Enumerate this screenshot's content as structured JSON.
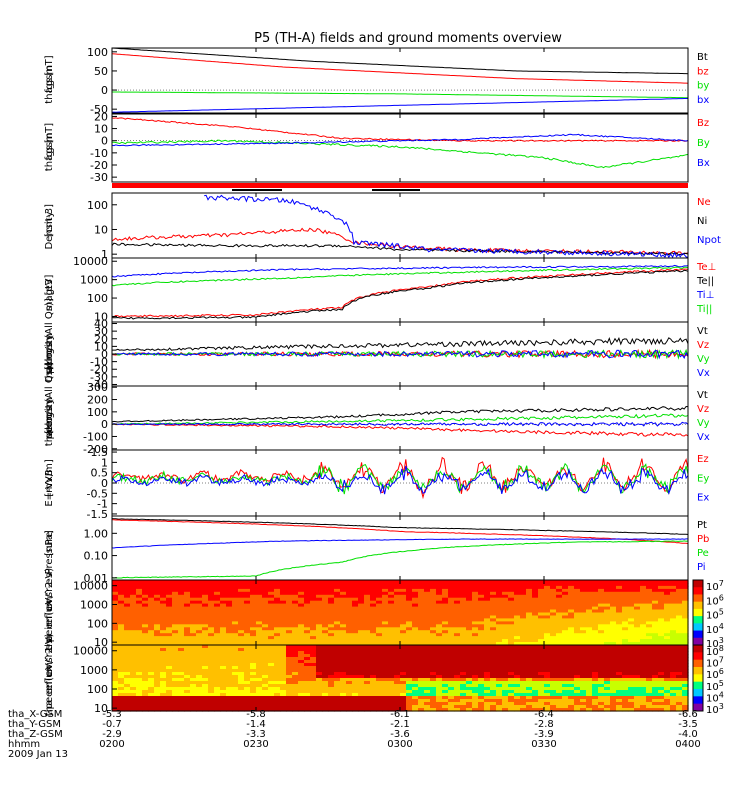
{
  "title": "P5 (TH-A) fields and ground moments overview",
  "colors": {
    "black": "#000000",
    "red": "#ff0000",
    "green": "#00e000",
    "blue": "#0000ff"
  },
  "chart_data": [
    {
      "type": "line",
      "ylabel": [
        "tha",
        "fgs",
        "gsm",
        "[nT]"
      ],
      "yticks": [
        100,
        50,
        0,
        -50
      ],
      "ylim": [
        -60,
        110
      ],
      "series": [
        {
          "name": "Bt",
          "color": "black",
          "trend": [
            [
              0,
              110
            ],
            [
              0.35,
              75
            ],
            [
              0.7,
              50
            ],
            [
              1,
              43
            ]
          ],
          "noise": 0.3
        },
        {
          "name": "bz",
          "color": "red",
          "trend": [
            [
              0,
              95
            ],
            [
              0.3,
              60
            ],
            [
              0.7,
              30
            ],
            [
              1,
              18
            ]
          ],
          "noise": 0.3
        },
        {
          "name": "by",
          "color": "green",
          "trend": [
            [
              0,
              -5
            ],
            [
              0.5,
              -10
            ],
            [
              1,
              -20
            ]
          ],
          "noise": 0.3
        },
        {
          "name": "bx",
          "color": "blue",
          "trend": [
            [
              0,
              -58
            ],
            [
              0.5,
              -40
            ],
            [
              1,
              -22
            ]
          ],
          "noise": 0.3
        }
      ]
    },
    {
      "type": "line",
      "ylabel": [
        "tha",
        "fgs",
        "gsm",
        "[nT]"
      ],
      "yticks": [
        20,
        10,
        0,
        -10,
        -20,
        -30
      ],
      "ylim": [
        -34,
        22
      ],
      "series": [
        {
          "name": "Bz",
          "color": "red",
          "trend": [
            [
              0,
              19
            ],
            [
              0.2,
              12
            ],
            [
              0.4,
              2
            ],
            [
              0.6,
              0
            ],
            [
              1,
              0
            ]
          ],
          "noise": 1
        },
        {
          "name": "By",
          "color": "green",
          "trend": [
            [
              0,
              -2
            ],
            [
              0.2,
              0
            ],
            [
              0.5,
              -5
            ],
            [
              0.75,
              -14
            ],
            [
              0.85,
              -22
            ],
            [
              1,
              -12
            ]
          ],
          "noise": 1.5
        },
        {
          "name": "Bx",
          "color": "blue",
          "trend": [
            [
              0,
              -4
            ],
            [
              0.3,
              -2
            ],
            [
              0.6,
              1
            ],
            [
              0.8,
              5
            ],
            [
              1,
              0
            ]
          ],
          "noise": 1
        }
      ]
    },
    {
      "type": "line",
      "log": true,
      "ylabel": [
        "Density",
        "[cm-3]"
      ],
      "yticks": [
        100,
        10,
        1
      ],
      "ylim": [
        0.7,
        300
      ],
      "series": [
        {
          "name": "Ne",
          "color": "red",
          "trend": [
            [
              0,
              4
            ],
            [
              0.2,
              6
            ],
            [
              0.35,
              10
            ],
            [
              0.42,
              3
            ],
            [
              0.5,
              2
            ],
            [
              0.6,
              1.5
            ],
            [
              1,
              1.1
            ]
          ],
          "noise": 0.15
        },
        {
          "name": "Ni",
          "color": "black",
          "trend": [
            [
              0,
              2.5
            ],
            [
              0.2,
              2.2
            ],
            [
              0.4,
              2.2
            ],
            [
              0.5,
              1.5
            ],
            [
              1,
              1
            ]
          ],
          "noise": 0.1
        },
        {
          "name": "Npot",
          "color": "blue",
          "trend": [
            [
              0.16,
              200
            ],
            [
              0.3,
              150
            ],
            [
              0.36,
              60
            ],
            [
              0.42,
              3
            ],
            [
              0.55,
              1.5
            ],
            [
              1,
              0.9
            ]
          ],
          "noise": 0.2
        }
      ]
    },
    {
      "type": "line",
      "log": true,
      "ylabel": [
        "magt3",
        "[eV]"
      ],
      "yticks": [
        10000,
        1000,
        100,
        10
      ],
      "ylim": [
        5,
        15000
      ],
      "series": [
        {
          "name": "Te⊥",
          "color": "red",
          "trend": [
            [
              0,
              10
            ],
            [
              0.25,
              12
            ],
            [
              0.4,
              30
            ],
            [
              0.55,
              400
            ],
            [
              0.8,
              1800
            ],
            [
              1,
              3500
            ]
          ],
          "noise": 0.1
        },
        {
          "name": "Te||",
          "color": "black",
          "trend": [
            [
              0,
              8
            ],
            [
              0.25,
              9
            ],
            [
              0.4,
              25
            ],
            [
              0.55,
              350
            ],
            [
              0.8,
              1500
            ],
            [
              1,
              3000
            ]
          ],
          "noise": 0.1
        },
        {
          "name": "Ti⊥",
          "color": "blue",
          "trend": [
            [
              0,
              1500
            ],
            [
              0.3,
              3500
            ],
            [
              0.6,
              4500
            ],
            [
              1,
              5500
            ]
          ],
          "noise": 0.08
        },
        {
          "name": "Ti||",
          "color": "green",
          "trend": [
            [
              0,
              500
            ],
            [
              0.3,
              1200
            ],
            [
              0.6,
              2500
            ],
            [
              1,
              4500
            ]
          ],
          "noise": 0.08
        }
      ]
    },
    {
      "type": "line",
      "ylabel": [
        "tha",
        "peir",
        "velocity",
        "gsm",
        "[km/s (All Qs)]"
      ],
      "yticks": [
        40,
        30,
        20,
        10,
        0,
        -10,
        -20,
        -30,
        -40
      ],
      "ylim": [
        -42,
        42
      ],
      "series": [
        {
          "name": "Vt",
          "color": "black",
          "trend": [
            [
              0,
              5
            ],
            [
              0.5,
              12
            ],
            [
              1,
              18
            ]
          ],
          "noise": 6
        },
        {
          "name": "Vz",
          "color": "red",
          "trend": [
            [
              0,
              0
            ],
            [
              1,
              0
            ]
          ],
          "noise": 7
        },
        {
          "name": "Vy",
          "color": "green",
          "trend": [
            [
              0,
              0
            ],
            [
              1,
              0
            ]
          ],
          "noise": 7
        },
        {
          "name": "Vx",
          "color": "blue",
          "trend": [
            [
              0,
              0
            ],
            [
              1,
              0
            ]
          ],
          "noise": 7
        }
      ]
    },
    {
      "type": "line",
      "ylabel": [
        "tha",
        "peer",
        "velocity",
        "gsm",
        "[km/s (All Qs)]"
      ],
      "yticks": [
        300,
        200,
        100,
        0,
        -100,
        -200
      ],
      "ylim": [
        -210,
        310
      ],
      "series": [
        {
          "name": "Vt",
          "color": "black",
          "trend": [
            [
              0,
              20
            ],
            [
              0.4,
              60
            ],
            [
              0.6,
              100
            ],
            [
              1,
              130
            ]
          ],
          "noise": 20
        },
        {
          "name": "Vz",
          "color": "red",
          "trend": [
            [
              0,
              0
            ],
            [
              0.4,
              -20
            ],
            [
              0.7,
              -60
            ],
            [
              1,
              -90
            ]
          ],
          "noise": 20
        },
        {
          "name": "Vy",
          "color": "green",
          "trend": [
            [
              0,
              0
            ],
            [
              0.5,
              30
            ],
            [
              1,
              70
            ]
          ],
          "noise": 20
        },
        {
          "name": "Vx",
          "color": "blue",
          "trend": [
            [
              0,
              0
            ],
            [
              1,
              0
            ]
          ],
          "noise": 20
        }
      ]
    },
    {
      "type": "line",
      "ylabel": [
        "E=-VxB",
        "[mV/m]"
      ],
      "yticks": [
        1.5,
        1.0,
        0.5,
        0.0,
        -0.5,
        -1.0,
        -1.5
      ],
      "ylim": [
        -1.6,
        1.6
      ],
      "series": [
        {
          "name": "Ez",
          "color": "red",
          "trend": [
            [
              0,
              0.3
            ],
            [
              1,
              0.3
            ]
          ],
          "noise": 0.3,
          "osc": 0.8
        },
        {
          "name": "Ey",
          "color": "green",
          "trend": [
            [
              0,
              0.2
            ],
            [
              1,
              0.2
            ]
          ],
          "noise": 0.3,
          "osc": 0.7
        },
        {
          "name": "Ex",
          "color": "blue",
          "trend": [
            [
              0,
              0.1
            ],
            [
              1,
              0.1
            ]
          ],
          "noise": 0.3,
          "osc": 0.6
        }
      ]
    },
    {
      "type": "line",
      "log": true,
      "ylabel": [
        "Pressure",
        "[nPa]"
      ],
      "yticks": [
        1.0,
        0.1,
        0.01
      ],
      "ytick_labels": [
        "1.00",
        "0.10",
        "0.01"
      ],
      "ylim": [
        0.008,
        6
      ],
      "series": [
        {
          "name": "Pt",
          "color": "black",
          "trend": [
            [
              0,
              4.5
            ],
            [
              0.5,
              1.8
            ],
            [
              1,
              0.9
            ]
          ],
          "noise": 0.02
        },
        {
          "name": "Pb",
          "color": "red",
          "trend": [
            [
              0,
              4
            ],
            [
              0.5,
              1.2
            ],
            [
              1,
              0.35
            ]
          ],
          "noise": 0.02
        },
        {
          "name": "Pe",
          "color": "green",
          "trend": [
            [
              0,
              0.01
            ],
            [
              0.25,
              0.012
            ],
            [
              0.4,
              0.05
            ],
            [
              0.6,
              0.25
            ],
            [
              0.8,
              0.4
            ],
            [
              1,
              0.45
            ]
          ],
          "noise": 0.03
        },
        {
          "name": "Pi",
          "color": "blue",
          "trend": [
            [
              0,
              0.22
            ],
            [
              0.3,
              0.45
            ],
            [
              0.6,
              0.55
            ],
            [
              1,
              0.55
            ]
          ],
          "noise": 0.02
        }
      ]
    },
    {
      "type": "heatmap",
      "ylabel": [
        "tha",
        "peir",
        "en",
        "eflux",
        "eV/",
        "(cm^2-s-",
        "sr-eV)"
      ],
      "yticks": [
        10000,
        1000,
        100,
        10
      ],
      "colorbar_labels": [
        "10^7",
        "10^6",
        "10^5",
        "10^4",
        "10^3"
      ]
    },
    {
      "type": "heatmap",
      "ylabel": [
        "tha",
        "peer",
        "en",
        "eflux",
        "eV/",
        "(cm^2-s-",
        "sr-eV)"
      ],
      "yticks": [
        10000,
        1000,
        100,
        10
      ],
      "colorbar_labels": [
        "10^8",
        "10^7",
        "10^6",
        "10^5",
        "10^4",
        "10^3"
      ]
    }
  ],
  "xaxis": {
    "rows": [
      {
        "label": "tha_X-GSM",
        "values": [
          "-5.3",
          "-5.8",
          "-6.1",
          "-6.4",
          "-6.6"
        ]
      },
      {
        "label": "tha_Y-GSM",
        "values": [
          "-0.7",
          "-1.4",
          "-2.1",
          "-2.8",
          "-3.5"
        ]
      },
      {
        "label": "tha_Z-GSM",
        "values": [
          "-2.9",
          "-3.3",
          "-3.6",
          "-3.9",
          "-4.0"
        ]
      },
      {
        "label": "hhmm",
        "values": [
          "0200",
          "0230",
          "0300",
          "0330",
          "0400"
        ]
      }
    ],
    "date": "2009 Jan 13"
  }
}
